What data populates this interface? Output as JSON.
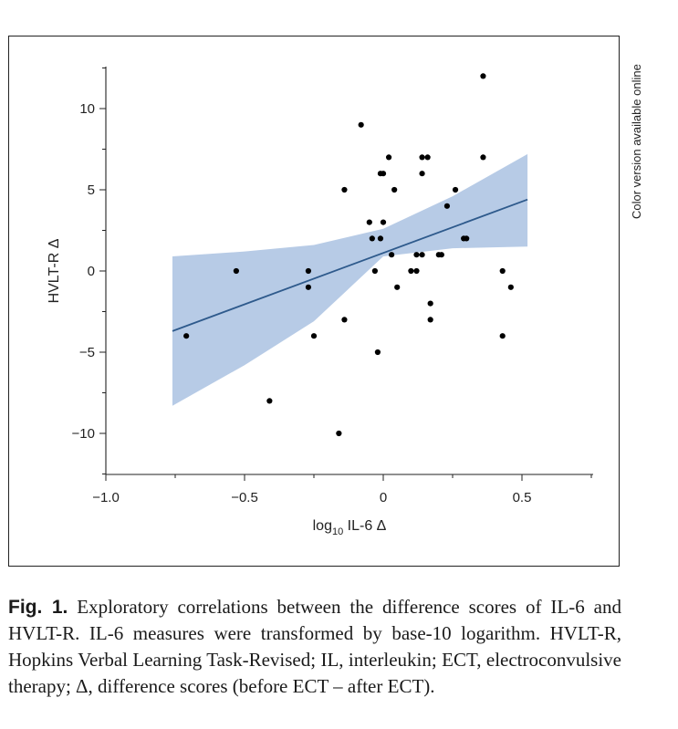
{
  "side_note": "Color version available online",
  "caption": {
    "label": "Fig. 1.",
    "text": "Exploratory correlations between the difference scores of IL-6 and HVLT-R. IL-6 measures were transformed by base-10 logarithm. HVLT-R, Hopkins Verbal Learning Task-Revised; IL, interleukin; ECT, electroconvulsive therapy; Δ, difference scores (before ECT – after ECT)."
  },
  "chart_data": {
    "type": "scatter",
    "xlabel_main": "log",
    "xlabel_sub": "10",
    "xlabel_rest": " IL-6 Δ",
    "ylabel": "HVLT-R Δ",
    "xlim": [
      -1.0,
      0.75
    ],
    "ylim": [
      -12.5,
      12.5
    ],
    "xticks": [
      -1.0,
      -0.5,
      0,
      0.5
    ],
    "xtick_labels": [
      "−1.0",
      "−0.5",
      "0",
      "0.5"
    ],
    "yticks": [
      -10,
      -5,
      0,
      5,
      10
    ],
    "ytick_labels": [
      "−10",
      "−5",
      "0",
      "5",
      "10"
    ],
    "colors": {
      "points": "#000000",
      "line": "#2e5a8c",
      "band": "#b7cbe6"
    },
    "points": [
      {
        "x": -0.71,
        "y": -4
      },
      {
        "x": -0.53,
        "y": 0
      },
      {
        "x": -0.41,
        "y": -8
      },
      {
        "x": -0.27,
        "y": 0
      },
      {
        "x": -0.27,
        "y": -1
      },
      {
        "x": -0.25,
        "y": -4
      },
      {
        "x": -0.16,
        "y": -10
      },
      {
        "x": -0.14,
        "y": 5
      },
      {
        "x": -0.14,
        "y": -3
      },
      {
        "x": -0.08,
        "y": 9
      },
      {
        "x": -0.05,
        "y": 3
      },
      {
        "x": -0.04,
        "y": 2
      },
      {
        "x": -0.03,
        "y": 0
      },
      {
        "x": -0.02,
        "y": -5
      },
      {
        "x": -0.01,
        "y": 2
      },
      {
        "x": -0.01,
        "y": 6
      },
      {
        "x": 0.0,
        "y": 6
      },
      {
        "x": 0.0,
        "y": 3
      },
      {
        "x": 0.02,
        "y": 7
      },
      {
        "x": 0.03,
        "y": 1
      },
      {
        "x": 0.04,
        "y": 5
      },
      {
        "x": 0.05,
        "y": -1
      },
      {
        "x": 0.1,
        "y": 0
      },
      {
        "x": 0.12,
        "y": 0
      },
      {
        "x": 0.12,
        "y": 1
      },
      {
        "x": 0.14,
        "y": 1
      },
      {
        "x": 0.14,
        "y": 7
      },
      {
        "x": 0.14,
        "y": 6
      },
      {
        "x": 0.16,
        "y": 7
      },
      {
        "x": 0.17,
        "y": -2
      },
      {
        "x": 0.17,
        "y": -3
      },
      {
        "x": 0.2,
        "y": 1
      },
      {
        "x": 0.21,
        "y": 1
      },
      {
        "x": 0.23,
        "y": 4
      },
      {
        "x": 0.26,
        "y": 5
      },
      {
        "x": 0.29,
        "y": 2
      },
      {
        "x": 0.3,
        "y": 2
      },
      {
        "x": 0.36,
        "y": 12
      },
      {
        "x": 0.36,
        "y": 7
      },
      {
        "x": 0.43,
        "y": 0
      },
      {
        "x": 0.43,
        "y": -4
      },
      {
        "x": 0.46,
        "y": -1
      }
    ],
    "fit_line": [
      {
        "x": -0.76,
        "y": -3.7
      },
      {
        "x": 0.52,
        "y": 4.4
      }
    ],
    "confidence_band": {
      "x": [
        -0.76,
        -0.5,
        -0.25,
        0.0,
        0.25,
        0.52
      ],
      "upper": [
        0.9,
        1.2,
        1.6,
        2.6,
        4.6,
        7.2
      ],
      "lower": [
        -8.3,
        -5.8,
        -3.1,
        0.9,
        1.4,
        1.5
      ]
    }
  }
}
